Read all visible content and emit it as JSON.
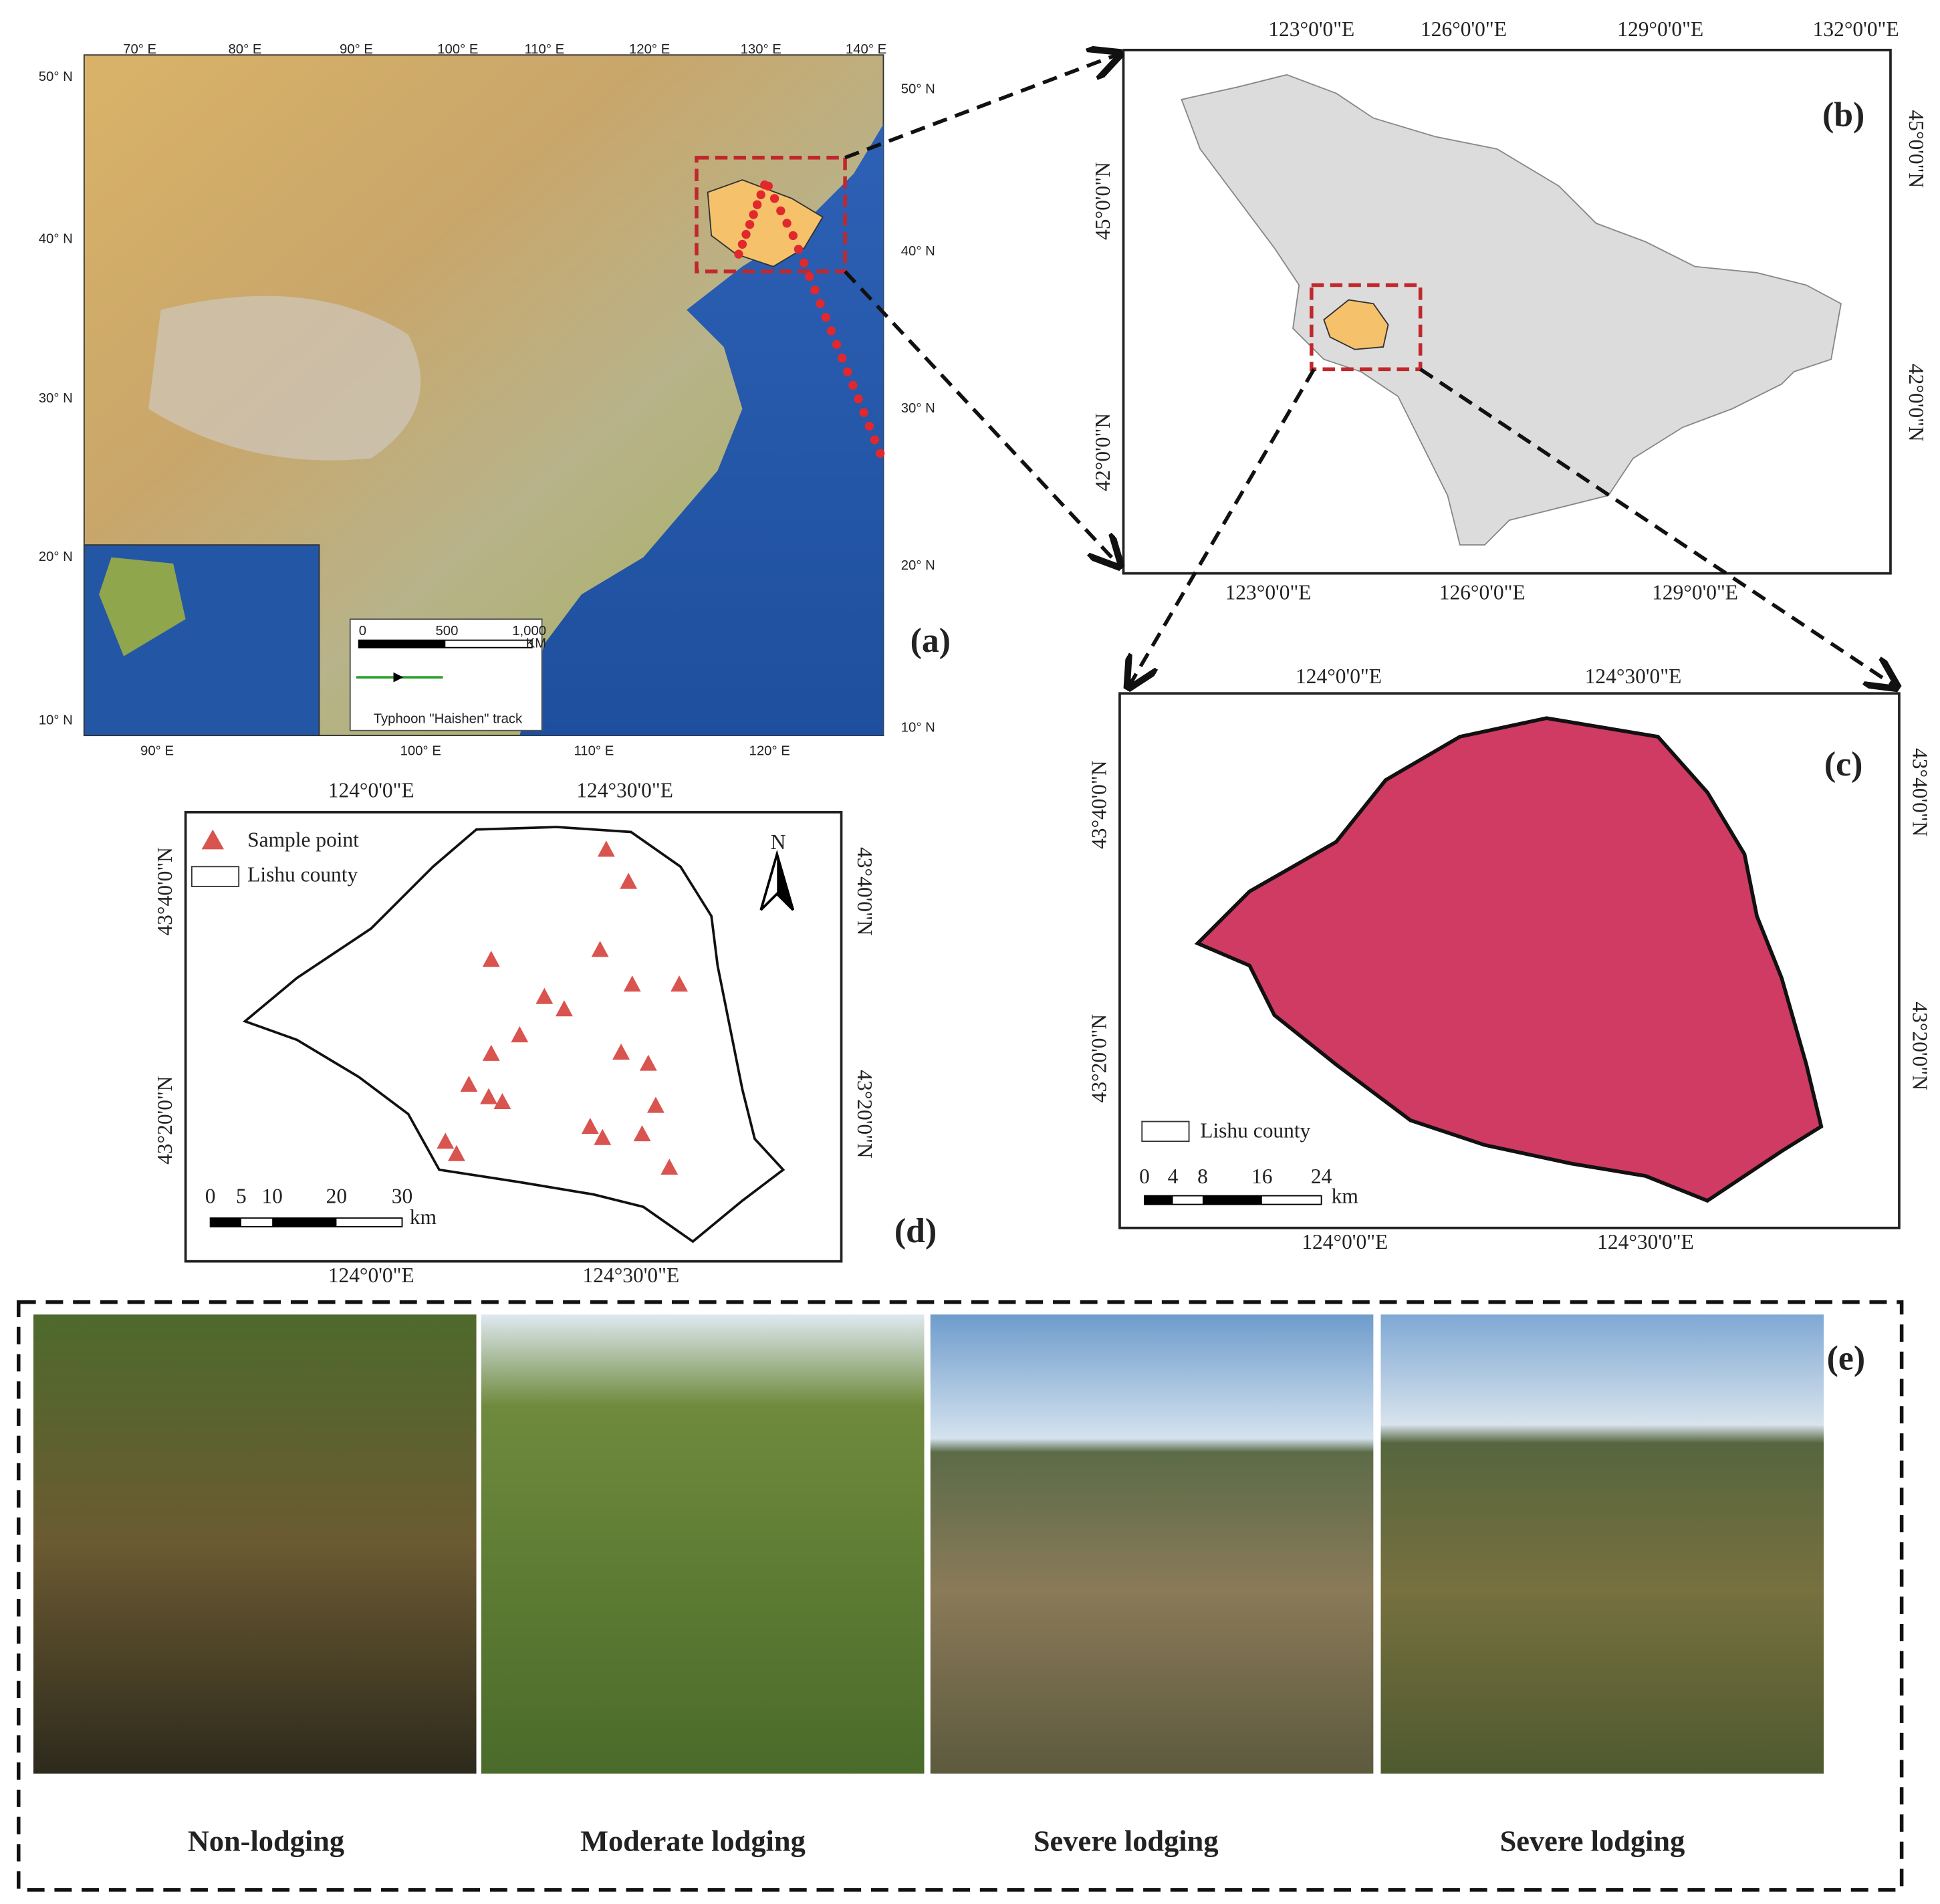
{
  "panel_a": {
    "label": "(a)",
    "top_lon": [
      "70° E",
      "80° E",
      "90° E",
      "100° E",
      "110° E",
      "120° E",
      "130° E",
      "140° E"
    ],
    "left_lat": [
      "50° N",
      "40° N",
      "30° N",
      "20° N",
      "10° N"
    ],
    "right_lat": [
      "50° N",
      "40° N",
      "30° N",
      "20° N",
      "10° N"
    ],
    "bottom_lon": [
      "90° E",
      "100° E",
      "110° E",
      "120° E"
    ],
    "scale": [
      "0",
      "500",
      "1,000",
      "KM"
    ],
    "legend": "Typhoon \"Haishen\" track"
  },
  "panel_b": {
    "label": "(b)",
    "top_lon": [
      "123°0'0\"E",
      "126°0'0\"E",
      "129°0'0\"E",
      "132°0'0\"E"
    ],
    "bottom_lon": [
      "123°0'0\"E",
      "126°0'0\"E",
      "129°0'0\"E"
    ],
    "left_lat": [
      "45°0'0\"N",
      "42°0'0\"N"
    ],
    "right_lat": [
      "45°0'0\"N",
      "42°0'0\"N"
    ]
  },
  "panel_c": {
    "label": "(c)",
    "top_lon": [
      "124°0'0\"E",
      "124°30'0\"E"
    ],
    "bottom_lon": [
      "124°0'0\"E",
      "124°30'0\"E"
    ],
    "left_lat": [
      "43°40'0\"N",
      "43°20'0\"N"
    ],
    "right_lat": [
      "43°40'0\"N",
      "43°20'0\"N"
    ],
    "legend": "Lishu county",
    "scale": [
      "0",
      "4",
      "8",
      "16",
      "24",
      "km"
    ]
  },
  "panel_d": {
    "label": "(d)",
    "top_lon": [
      "124°0'0\"E",
      "124°30'0\"E"
    ],
    "bottom_lon": [
      "124°0'0\"E",
      "124°30'0\"E"
    ],
    "left_lat": [
      "43°40'0\"N",
      "43°20'0\"N"
    ],
    "right_lat": [
      "43°40'0\"N",
      "43°20'0\"N"
    ],
    "legend": [
      "Sample point",
      "Lishu county"
    ],
    "north": "N",
    "scale": [
      "0",
      "5",
      "10",
      "20",
      "30",
      "km"
    ]
  },
  "panel_e": {
    "label": "(e)",
    "captions": [
      "Non-lodging",
      "Moderate lodging",
      "Severe lodging",
      "Severe lodging"
    ]
  }
}
